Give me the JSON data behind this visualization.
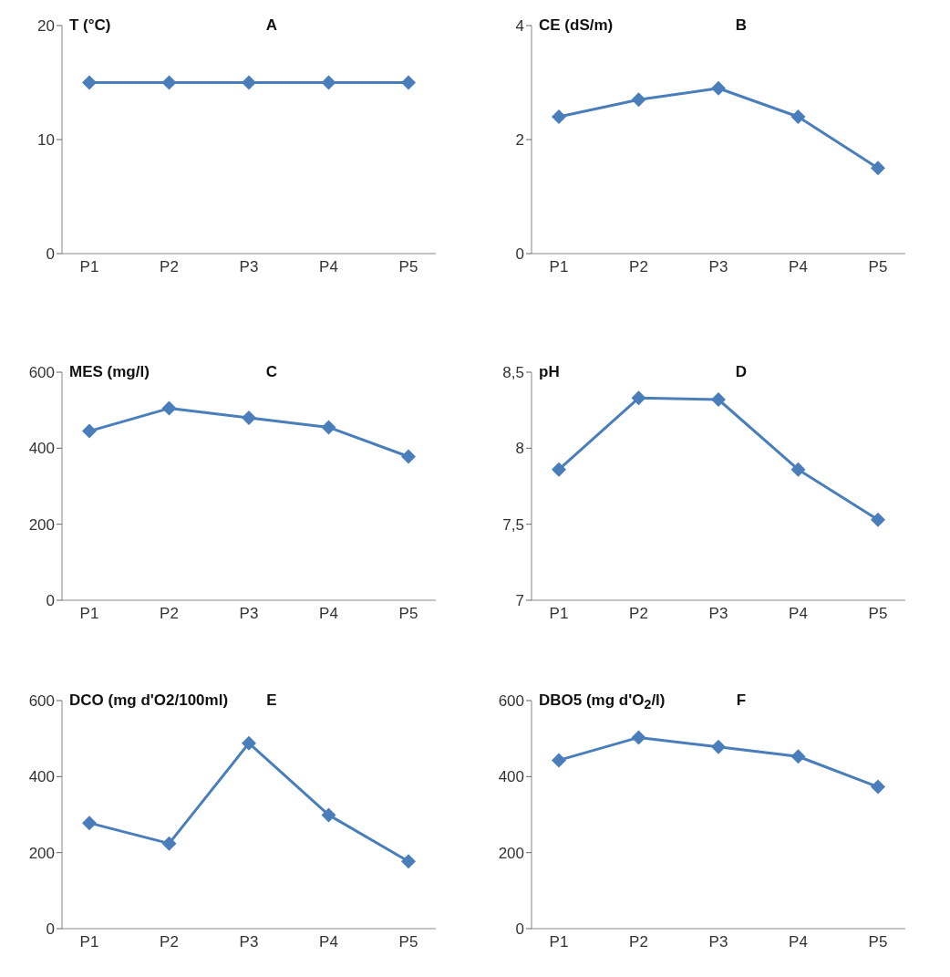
{
  "chart_data": [
    {
      "type": "line",
      "title": "A",
      "ylabel": "T (°C)",
      "categories": [
        "P1",
        "P2",
        "P3",
        "P4",
        "P5"
      ],
      "series": [
        {
          "color": "#4a7ebb",
          "values": [
            15,
            15,
            15,
            15,
            15
          ]
        }
      ],
      "ylim": [
        0,
        20
      ],
      "yticks": [
        0,
        10,
        20
      ],
      "marker": "diamond",
      "grid": false
    },
    {
      "type": "line",
      "title": "B",
      "ylabel": "CE (dS/m)",
      "categories": [
        "P1",
        "P2",
        "P3",
        "P4",
        "P5"
      ],
      "series": [
        {
          "color": "#4a7ebb",
          "values": [
            2.4,
            2.7,
            2.9,
            2.4,
            1.5
          ]
        }
      ],
      "ylim": [
        0,
        4
      ],
      "yticks": [
        0,
        2,
        4
      ],
      "marker": "diamond",
      "grid": false
    },
    {
      "type": "line",
      "title": "C",
      "ylabel": "MES (mg/l)",
      "categories": [
        "P1",
        "P2",
        "P3",
        "P4",
        "P5"
      ],
      "series": [
        {
          "color": "#4a7ebb",
          "values": [
            445,
            505,
            480,
            455,
            378
          ]
        }
      ],
      "ylim": [
        0,
        600
      ],
      "yticks": [
        0,
        200,
        400,
        600
      ],
      "marker": "diamond",
      "grid": false
    },
    {
      "type": "line",
      "title": "D",
      "ylabel": "pH",
      "categories": [
        "P1",
        "P2",
        "P3",
        "P4",
        "P5"
      ],
      "series": [
        {
          "color": "#4a7ebb",
          "values": [
            7.86,
            8.33,
            8.32,
            7.86,
            7.53
          ]
        }
      ],
      "ylim": [
        7,
        8.5
      ],
      "yticks": [
        7,
        {
          "value": 7.5,
          "label": "7,5"
        },
        8,
        {
          "value": 8.5,
          "label": "8,5"
        }
      ],
      "marker": "diamond",
      "grid": false
    },
    {
      "type": "line",
      "title": "E",
      "ylabel": "DCO (mg d'O2/100ml)",
      "categories": [
        "P1",
        "P2",
        "P3",
        "P4",
        "P5"
      ],
      "series": [
        {
          "color": "#4a7ebb",
          "values": [
            278,
            224,
            488,
            299,
            177
          ]
        }
      ],
      "ylim": [
        0,
        600
      ],
      "yticks": [
        0,
        200,
        400,
        600
      ],
      "marker": "diamond",
      "grid": false
    },
    {
      "type": "line",
      "title": "F",
      "ylabel": "DBO5 (mg d'O$_{2}$/l)",
      "categories": [
        "P1",
        "P2",
        "P3",
        "P4",
        "P5"
      ],
      "series": [
        {
          "color": "#4a7ebb",
          "values": [
            443,
            503,
            478,
            453,
            373
          ]
        }
      ],
      "ylim": [
        0,
        600
      ],
      "yticks": [
        0,
        200,
        400,
        600
      ],
      "marker": "diamond",
      "grid": false
    }
  ]
}
